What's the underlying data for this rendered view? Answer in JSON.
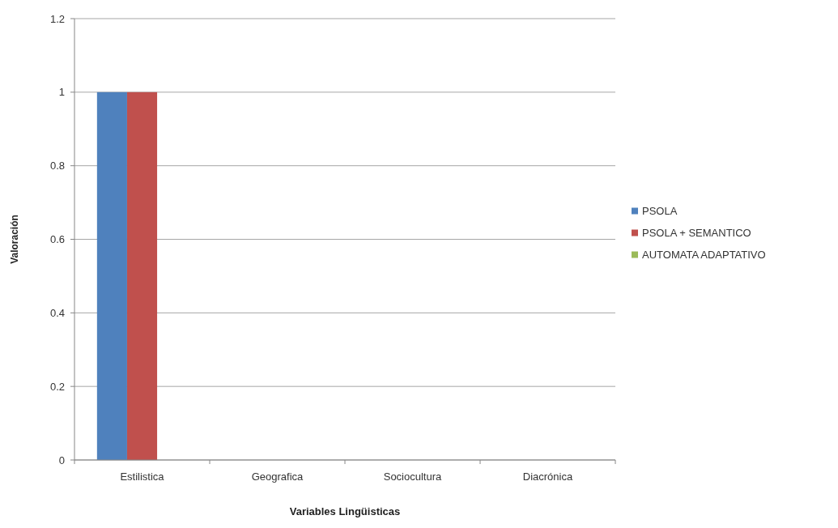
{
  "chart_data": {
    "type": "bar",
    "xlabel": "Variables Lingüisticas",
    "ylabel": "Valoración",
    "categories": [
      "Estilistica",
      "Geografica",
      "Sociocultura",
      "Diacrónica"
    ],
    "series": [
      {
        "name": "PSOLA",
        "color": "#4f81bd",
        "values": [
          1,
          0,
          0,
          0
        ]
      },
      {
        "name": "PSOLA + SEMANTICO",
        "color": "#c0504d",
        "values": [
          1,
          0,
          0,
          0
        ]
      },
      {
        "name": "AUTOMATA ADAPTATIVO",
        "color": "#9bbb59",
        "values": [
          0,
          0,
          0,
          0
        ]
      }
    ],
    "ylim": [
      0,
      1.2
    ],
    "yticks": [
      0,
      0.2,
      0.4,
      0.6,
      0.8,
      1,
      1.2
    ],
    "grid": "y",
    "legend": "right"
  }
}
